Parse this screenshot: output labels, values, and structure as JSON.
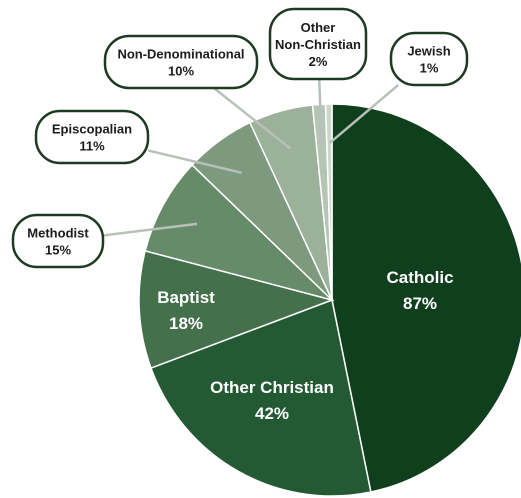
{
  "chart_data": {
    "type": "pie",
    "title": "",
    "slices": [
      {
        "label": "Catholic",
        "value": 87,
        "value_label": "87%",
        "color": "#103f1e",
        "label_style": "inside"
      },
      {
        "label": "Other Christian",
        "value": 42,
        "value_label": "42%",
        "color": "#235a33",
        "label_style": "inside"
      },
      {
        "label": "Baptist",
        "value": 18,
        "value_label": "18%",
        "color": "#44704c",
        "label_style": "inside"
      },
      {
        "label": "Methodist",
        "value": 15,
        "value_label": "15%",
        "color": "#668b68",
        "label_style": "callout"
      },
      {
        "label": "Episcopalian",
        "value": 11,
        "value_label": "11%",
        "color": "#7e9a7e",
        "label_style": "callout"
      },
      {
        "label": "Non-Denominational",
        "value": 10,
        "value_label": "10%",
        "color": "#9bb19a",
        "label_style": "callout"
      },
      {
        "label": "Other Non-Christian",
        "value": 2,
        "value_label": "2%",
        "color": "#b5c5b3",
        "label_style": "callout"
      },
      {
        "label": "Jewish",
        "value": 1,
        "value_label": "1%",
        "color": "#cdd8cb",
        "label_style": "callout"
      }
    ]
  }
}
